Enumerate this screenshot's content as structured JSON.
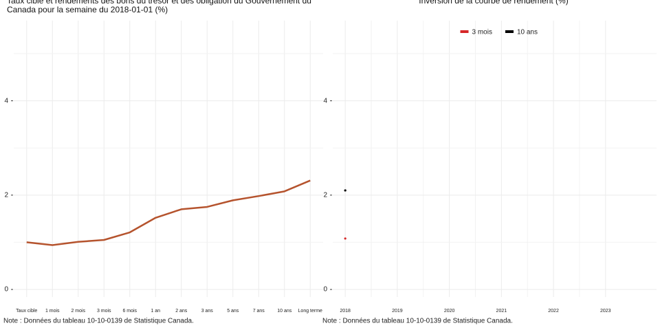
{
  "chart_data": [
    {
      "type": "line",
      "title": "Taux cible et rendements des bons du trésor et des obligation du Gouvernement du Canada pour la semaine du 2018-01-01 (%)",
      "categories": [
        "Taux cible",
        "1 mois",
        "2 mois",
        "3 mois",
        "6 mois",
        "1 an",
        "2 ans",
        "3 ans",
        "5 ans",
        "7 ans",
        "10 ans",
        "Long terme"
      ],
      "values": [
        1.0,
        0.94,
        1.01,
        1.05,
        1.21,
        1.52,
        1.7,
        1.75,
        1.89,
        1.98,
        2.08,
        2.31
      ],
      "color": "#b5532d",
      "ylim": [
        -0.16,
        5.7
      ],
      "yticks": [
        0,
        2,
        4
      ],
      "minor_yticks": [
        1,
        3,
        5
      ],
      "grid": true,
      "note": "Note : Données du tableau 10-10-0139 de Statistique Canada."
    },
    {
      "type": "line",
      "title": "Inversion de la courbe de rendement (%)",
      "x": [
        2018
      ],
      "series": [
        {
          "name": "3 mois",
          "color": "#d62728",
          "values": [
            1.08
          ]
        },
        {
          "name": "10 ans",
          "color": "#000000",
          "values": [
            2.1
          ]
        }
      ],
      "xlim": [
        2017.76,
        2023.98
      ],
      "xticks": [
        2018,
        2019,
        2020,
        2021,
        2022,
        2023
      ],
      "ylim": [
        -0.16,
        5.7
      ],
      "yticks": [
        0,
        2,
        4
      ],
      "minor_yticks": [
        1,
        3,
        5
      ],
      "grid": true,
      "legend": "top",
      "note": "Note : Données du tableau 10-10-0139 de Statistique Canada."
    }
  ]
}
